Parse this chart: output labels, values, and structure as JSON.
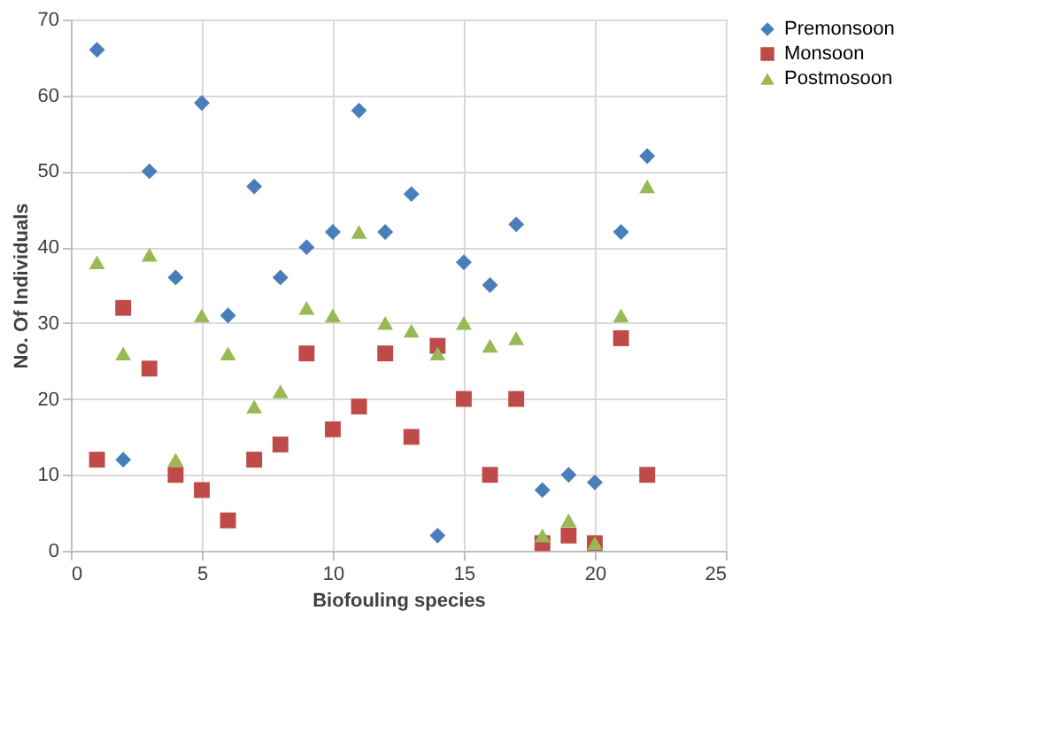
{
  "chart_data": {
    "type": "scatter",
    "xlabel": "Biofouling species",
    "ylabel": "No. Of Individuals",
    "x": [
      1,
      2,
      3,
      4,
      5,
      6,
      7,
      8,
      9,
      10,
      11,
      12,
      13,
      14,
      15,
      16,
      17,
      18,
      19,
      20,
      21,
      22
    ],
    "series": [
      {
        "name": "Premonsoon",
        "color": "#4a7ebb",
        "marker": "diamond",
        "values": [
          66,
          12,
          50,
          36,
          59,
          31,
          48,
          36,
          40,
          42,
          58,
          42,
          47,
          2,
          38,
          35,
          43,
          8,
          10,
          9,
          42,
          52
        ]
      },
      {
        "name": "Monsoon",
        "color": "#be4b48",
        "marker": "square",
        "values": [
          12,
          32,
          24,
          10,
          8,
          4,
          12,
          14,
          26,
          16,
          19,
          26,
          15,
          27,
          20,
          10,
          20,
          1,
          2,
          1,
          28,
          10
        ]
      },
      {
        "name": "Postmosoon",
        "color": "#98b954",
        "marker": "triangle",
        "values": [
          38,
          26,
          39,
          12,
          31,
          26,
          19,
          21,
          32,
          31,
          42,
          30,
          29,
          26,
          30,
          27,
          28,
          2,
          4,
          1,
          31,
          48
        ]
      }
    ],
    "xlim": [
      0,
      25
    ],
    "xticks": [
      0,
      5,
      10,
      15,
      20,
      25
    ],
    "ylim": [
      0,
      70
    ],
    "yticks": [
      0,
      10,
      20,
      30,
      40,
      50,
      60,
      70
    ],
    "grid": true,
    "legend": "right"
  }
}
